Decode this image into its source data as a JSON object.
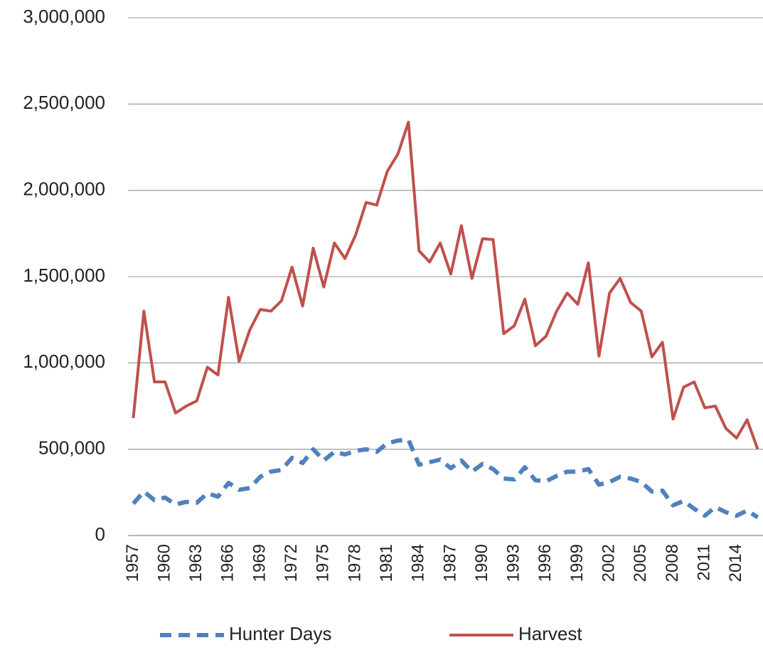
{
  "chart_data": {
    "type": "line",
    "categories": [
      "1957",
      null,
      null,
      "1960",
      null,
      null,
      "1963",
      null,
      null,
      "1966",
      null,
      null,
      "1969",
      null,
      null,
      "1972",
      null,
      null,
      "1975",
      null,
      null,
      "1978",
      null,
      null,
      "1981",
      null,
      null,
      "1984",
      null,
      null,
      "1987",
      null,
      null,
      "1990",
      null,
      null,
      "1993",
      null,
      null,
      "1996",
      null,
      null,
      "1999",
      null,
      null,
      "2002",
      null,
      null,
      "2005",
      null,
      null,
      "2008",
      null,
      null,
      "2011",
      null,
      null,
      "2014",
      null,
      null
    ],
    "series": [
      {
        "name": "Hunter Days",
        "color": "#4f81bd",
        "dashed": true,
        "values": [
          185000,
          255000,
          205000,
          220000,
          180000,
          195000,
          190000,
          245000,
          225000,
          305000,
          265000,
          275000,
          340000,
          370000,
          380000,
          450000,
          420000,
          500000,
          435000,
          485000,
          470000,
          490000,
          500000,
          485000,
          535000,
          550000,
          555000,
          410000,
          425000,
          440000,
          390000,
          435000,
          370000,
          415000,
          385000,
          330000,
          325000,
          395000,
          320000,
          315000,
          345000,
          370000,
          370000,
          385000,
          295000,
          310000,
          340000,
          330000,
          310000,
          255000,
          260000,
          175000,
          200000,
          155000,
          115000,
          165000,
          135000,
          115000,
          145000,
          105000
        ]
      },
      {
        "name": "Harvest",
        "color": "#c0504d",
        "dashed": false,
        "values": [
          680000,
          1300000,
          890000,
          890000,
          710000,
          750000,
          780000,
          975000,
          930000,
          1380000,
          1010000,
          1190000,
          1310000,
          1300000,
          1360000,
          1555000,
          1330000,
          1665000,
          1440000,
          1695000,
          1605000,
          1740000,
          1930000,
          1915000,
          2110000,
          2210000,
          2395000,
          1650000,
          1585000,
          1695000,
          1515000,
          1795000,
          1490000,
          1720000,
          1715000,
          1170000,
          1215000,
          1370000,
          1100000,
          1155000,
          1300000,
          1405000,
          1340000,
          1580000,
          1040000,
          1405000,
          1490000,
          1350000,
          1300000,
          1035000,
          1120000,
          675000,
          860000,
          890000,
          740000,
          750000,
          620000,
          565000,
          670000,
          500000
        ]
      }
    ],
    "ylim": [
      0,
      3000000
    ],
    "yticks": [
      0,
      {
        "value": 500000,
        "label": "500,000"
      },
      {
        "value": 1000000,
        "label": "1,000,000"
      },
      {
        "value": 1500000,
        "label": "1,500,000"
      },
      {
        "value": 2000000,
        "label": "2,000,000"
      },
      {
        "value": 2500000,
        "label": "2,500,000"
      },
      {
        "value": 3000000,
        "label": "3,000,000"
      }
    ],
    "grid": true,
    "legend": "bottom"
  }
}
